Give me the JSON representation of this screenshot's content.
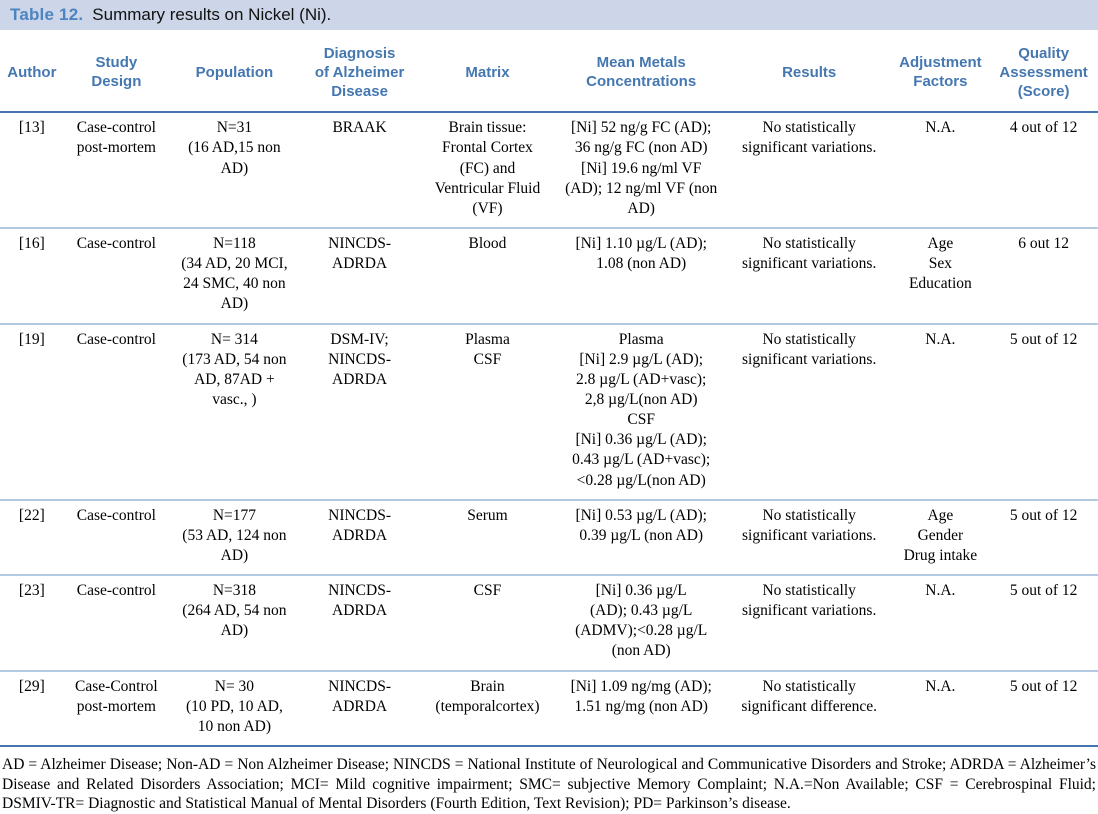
{
  "title": {
    "label": "Table 12.",
    "text": "Summary results on Nickel (Ni)."
  },
  "colors": {
    "title_bar_bg": "#ccd6e8",
    "title_label_blue": "#4d84c0",
    "header_text_blue": "#4577b0",
    "strong_rule": "#4575ae",
    "light_rule": "#b3c9e2"
  },
  "table": {
    "headers": [
      "Author",
      "Study\nDesign",
      "Population",
      "Diagnosis\nof Alzheimer\nDisease",
      "Matrix",
      "Mean Metals\nConcentrations",
      "Results",
      "Adjustment\nFactors",
      "Quality\nAssessment\n(Score)"
    ],
    "rows": [
      {
        "author": "[13]",
        "study_design": "Case-control\npost-mortem",
        "population": "N=31\n(16 AD,15 non\nAD)",
        "diagnosis": "BRAAK",
        "matrix": "Brain tissue:\nFrontal Cortex\n(FC) and\nVentricular Fluid\n(VF)",
        "concentrations": "[Ni] 52 ng/g FC (AD);\n36 ng/g FC (non AD)\n[Ni] 19.6 ng/ml VF\n(AD); 12 ng/ml VF (non\nAD)",
        "results": "No statistically\nsignificant variations.",
        "adjustment": "N.A.",
        "quality": "4 out of 12"
      },
      {
        "author": "[16]",
        "study_design": "Case-control",
        "population": "N=118\n(34 AD, 20 MCI,\n24 SMC, 40 non\nAD)",
        "diagnosis": "NINCDS-\nADRDA",
        "matrix": "Blood",
        "concentrations": "[Ni] 1.10 µg/L (AD);\n1.08 (non AD)",
        "results": "No statistically\nsignificant variations.",
        "adjustment": "Age\nSex\nEducation",
        "quality": "6 out 12"
      },
      {
        "author": "[19]",
        "study_design": "Case-control",
        "population": "N= 314\n(173 AD, 54 non\nAD, 87AD +\nvasc., )",
        "diagnosis": "DSM-IV;\nNINCDS-\nADRDA",
        "matrix": "Plasma\nCSF",
        "concentrations": "Plasma\n[Ni] 2.9 µg/L (AD);\n2.8 µg/L (AD+vasc);\n2,8 µg/L(non AD)\nCSF\n[Ni] 0.36 µg/L (AD);\n0.43 µg/L (AD+vasc);\n<0.28 µg/L(non AD)",
        "results": "No statistically\nsignificant variations.",
        "adjustment": "N.A.",
        "quality": "5 out of 12"
      },
      {
        "author": "[22]",
        "study_design": "Case-control",
        "population": "N=177\n(53 AD, 124 non\nAD)",
        "diagnosis": "NINCDS-\nADRDA",
        "matrix": "Serum",
        "concentrations": "[Ni] 0.53 µg/L (AD);\n0.39 µg/L (non AD)",
        "results": "No statistically\nsignificant variations.",
        "adjustment": "Age\nGender\nDrug intake",
        "quality": "5 out of 12"
      },
      {
        "author": "[23]",
        "study_design": "Case-control",
        "population": "N=318\n(264 AD, 54 non\nAD)",
        "diagnosis": "NINCDS-\nADRDA",
        "matrix": "CSF",
        "concentrations": "[Ni] 0.36 µg/L\n(AD); 0.43 µg/L\n(ADMV);<0.28 µg/L\n(non AD)",
        "results": "No statistically\nsignificant variations.",
        "adjustment": "N.A.",
        "quality": "5 out of 12"
      },
      {
        "author": "[29]",
        "study_design": "Case-Control\npost-mortem",
        "population": "N= 30\n(10 PD, 10 AD,\n10 non AD)",
        "diagnosis": "NINCDS-\nADRDA",
        "matrix": "Brain\n(temporalcortex)",
        "concentrations": "[Ni] 1.09 ng/mg (AD);\n1.51 ng/mg (non AD)",
        "results": "No statistically\nsignificant difference.",
        "adjustment": "N.A.",
        "quality": "5 out of 12"
      }
    ]
  },
  "footnote": "AD = Alzheimer Disease; Non-AD = Non Alzheimer Disease; NINCDS = National Institute of Neurological and Communicative Disorders and Stroke; ADRDA = Alzheimer’s Disease and Related Disorders Association; MCI= Mild cognitive impairment; SMC= subjective Memory Complaint; N.A.=Non Available; CSF = Cerebrospinal Fluid; DSMIV-TR= Diagnostic and Statistical Manual of Mental Disorders (Fourth Edition, Text Revision); PD= Parkinson’s disease."
}
